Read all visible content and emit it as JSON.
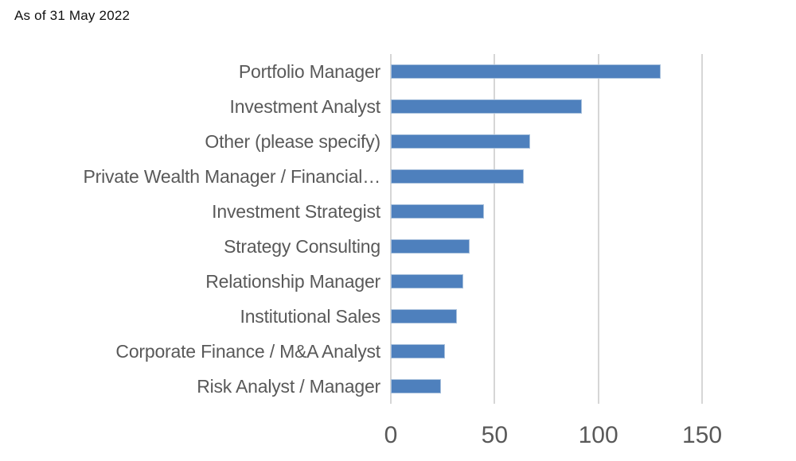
{
  "chart_data": {
    "type": "bar",
    "orientation": "horizontal",
    "title": "As of 31 May 2022",
    "categories": [
      "Portfolio Manager",
      "Investment Analyst",
      "Other (please specify)",
      "Private Wealth Manager / Financial…",
      "Investment Strategist",
      "Strategy Consulting",
      "Relationship Manager",
      "Institutional Sales",
      "Corporate Finance / M&A Analyst",
      "Risk Analyst / Manager"
    ],
    "values": [
      130,
      92,
      67,
      64,
      45,
      38,
      35,
      32,
      26,
      24
    ],
    "xlim": [
      0,
      150
    ],
    "x_ticks": [
      0,
      50,
      100,
      150
    ],
    "ylabel": "",
    "xlabel": "",
    "grid": "vertical",
    "legend": "none",
    "bar_color": "#4e80bd",
    "bar_border_color": "#a7c0dc",
    "gridline_color": "#d6d6d6",
    "label_color": "#595959",
    "tick_color": "#595959",
    "title_color": "#111111"
  }
}
